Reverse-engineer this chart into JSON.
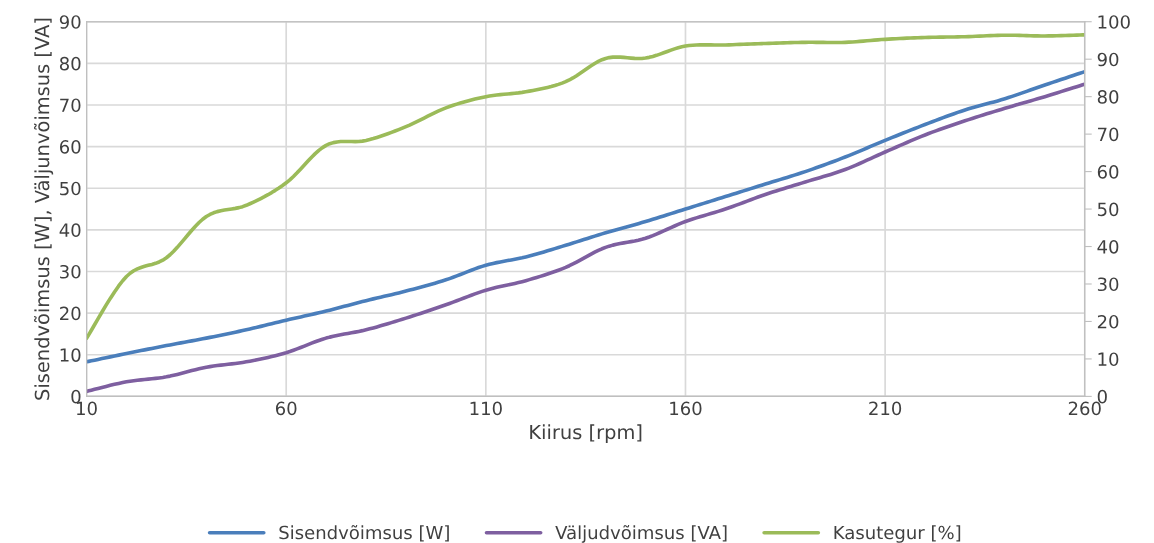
{
  "chart_data": {
    "type": "line",
    "xlabel": "Kiirus [rpm]",
    "ylabel": "Sisendvõimsus [W], Väljunvõimsus [VA]",
    "x": [
      10,
      20,
      30,
      40,
      50,
      60,
      70,
      80,
      90,
      100,
      110,
      120,
      130,
      140,
      150,
      160,
      170,
      180,
      190,
      200,
      210,
      220,
      230,
      240,
      250,
      260
    ],
    "series": [
      {
        "name": "Sisendvõimsus [W]",
        "color": "#4a7ebb",
        "values": [
          8.3,
          10.3,
          12.2,
          14,
          16,
          18.3,
          20.5,
          23,
          25.3,
          28,
          31.5,
          33.5,
          36.3,
          39.3,
          42,
          45,
          48,
          51,
          54,
          57.5,
          61.5,
          65.3,
          68.8,
          71.5,
          74.8,
          78
        ]
      },
      {
        "name": "Väljudvõimsus [VA]",
        "color": "#7e5fa0",
        "values": [
          1.2,
          3.5,
          4.7,
          7,
          8.3,
          10.5,
          14,
          16,
          18.8,
          22,
          25.5,
          27.8,
          31,
          35.8,
          38,
          42,
          45,
          48.5,
          51.5,
          54.5,
          58.7,
          62.8,
          66.2,
          69.2,
          72,
          75
        ]
      },
      {
        "name": "Kasutegur [%]",
        "color": "#9bbb59",
        "axis": "y2",
        "values": [
          15.5,
          32,
          37,
          48,
          51,
          57,
          67,
          68.3,
          72,
          77,
          80,
          81.3,
          84,
          90.2,
          90.3,
          93.5,
          93.8,
          94.2,
          94.5,
          94.5,
          95.3,
          95.8,
          96,
          96.4,
          96.2,
          96.5
        ]
      }
    ],
    "xlim": [
      10,
      260
    ],
    "xticks": [
      10,
      60,
      110,
      160,
      210,
      260
    ],
    "ylim": [
      0,
      90
    ],
    "yticks": [
      0,
      10,
      20,
      30,
      40,
      50,
      60,
      70,
      80,
      90
    ],
    "y2lim": [
      0,
      100
    ],
    "y2ticks": [
      0,
      10,
      20,
      30,
      40,
      50,
      60,
      70,
      80,
      90,
      100
    ],
    "grid": true,
    "legend": "bottom",
    "marker": "none",
    "line_style": "solid"
  }
}
